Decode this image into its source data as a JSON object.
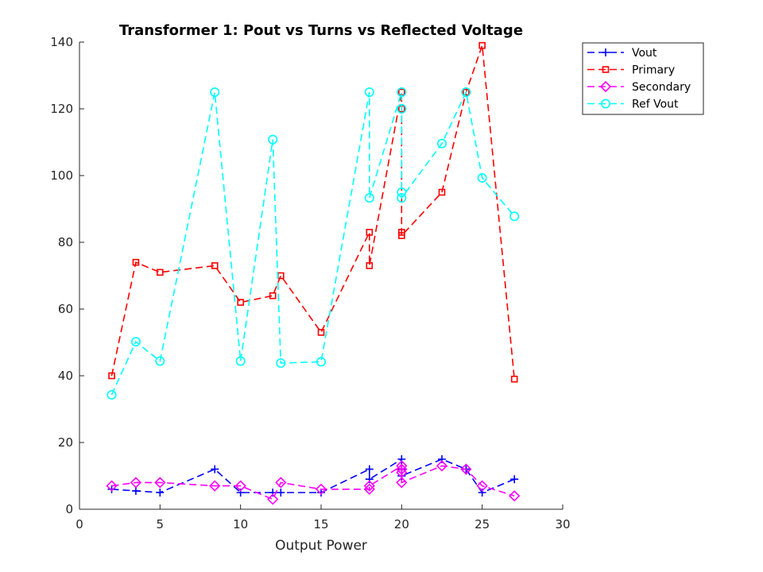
{
  "chart_data": {
    "type": "line",
    "title": "Transformer 1: Pout vs Turns vs Reflected Voltage",
    "xlabel": "Output Power",
    "ylabel": "",
    "xlim": [
      0,
      30
    ],
    "ylim": [
      0,
      140
    ],
    "xticks": [
      0,
      5,
      10,
      15,
      20,
      25,
      30
    ],
    "yticks": [
      0,
      20,
      40,
      60,
      80,
      100,
      120,
      140
    ],
    "grid": false,
    "legend_position": "top-right",
    "x": [
      2,
      3.5,
      5,
      8.4,
      10,
      12,
      12.5,
      15,
      18,
      18,
      20,
      20,
      20,
      20,
      22.5,
      24,
      25,
      27
    ],
    "series": [
      {
        "name": "Vout",
        "color": "#0000ff",
        "marker": "plus",
        "values": [
          6,
          5.5,
          5,
          12,
          5,
          5,
          5,
          5,
          12,
          9,
          15,
          12,
          10,
          10,
          15,
          12,
          5,
          9
        ]
      },
      {
        "name": "Primary",
        "color": "#ff0000",
        "marker": "square",
        "values": [
          40,
          74,
          71,
          73,
          62,
          64,
          70,
          53,
          83,
          73,
          125,
          120,
          83,
          82,
          95,
          125,
          139,
          39
        ]
      },
      {
        "name": "Secondary",
        "color": "#ff00ff",
        "marker": "diamond",
        "values": [
          7,
          8,
          8,
          7,
          7,
          3,
          8,
          6,
          6,
          7,
          13,
          11,
          12,
          8,
          13,
          12,
          7,
          4
        ]
      },
      {
        "name": "Ref Vout",
        "color": "#00ffff",
        "marker": "circle",
        "values": [
          34.3,
          50.2,
          44.4,
          125,
          44.4,
          110.8,
          43.8,
          44.2,
          125,
          93.3,
          125,
          120,
          95,
          93.3,
          109.6,
          125,
          99.3,
          87.8
        ]
      }
    ]
  }
}
